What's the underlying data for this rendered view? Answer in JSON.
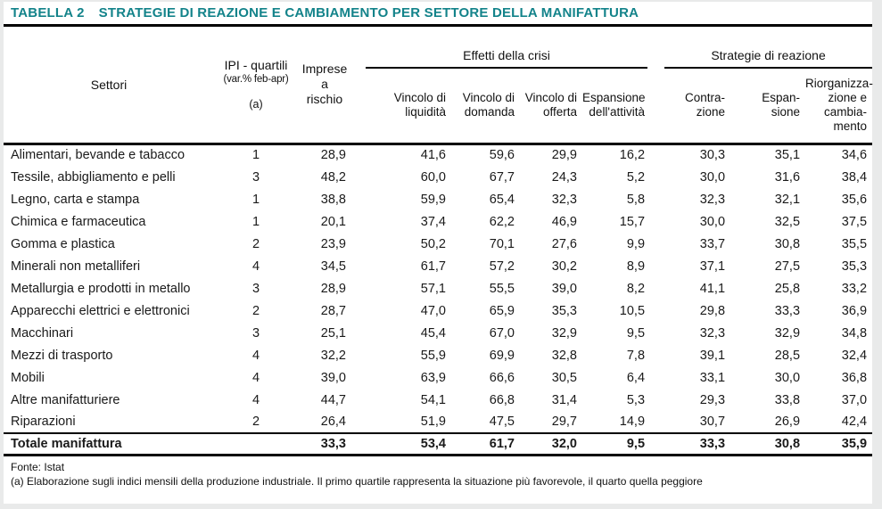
{
  "colors": {
    "title_teal": "#13838a",
    "rule_black": "#000000",
    "frame_gray": "#e9eaea",
    "paper_white": "#ffffff"
  },
  "title": {
    "tag": "TABELLA 2",
    "text": "STRATEGIE DI REAZIONE E CAMBIAMENTO PER SETTORE DELLA MANIFATTURA"
  },
  "header": {
    "settori": "Settori",
    "ipi_line1": "IPI - quartili",
    "ipi_line2": "(var.% feb-apr)",
    "ipi_note": "(a)",
    "imprese_line1": "Imprese a",
    "imprese_line2": "rischio",
    "group_effetti": "Effetti della crisi",
    "group_strategie": "Strategie di reazione",
    "sub_headers": [
      {
        "l1": "Vincolo di",
        "l2": "liquidità"
      },
      {
        "l1": "Vincolo di",
        "l2": "domanda"
      },
      {
        "l1": "Vincolo di",
        "l2": "offerta"
      },
      {
        "l1": "Espansione",
        "l2": "dell'attività"
      },
      {
        "l1": "Contra-",
        "l2": "zione"
      },
      {
        "l1": "Espan-",
        "l2": "sione"
      },
      {
        "l1": "Riorganizza-",
        "l2": "zione e",
        "l3": "cambia-",
        "l4": "mento"
      }
    ]
  },
  "chart_data": {
    "type": "table",
    "title": "TABELLA 2 — STRATEGIE DI REAZIONE E CAMBIAMENTO PER SETTORE DELLA MANIFATTURA",
    "column_groups": [
      {
        "label": "Effetti della crisi",
        "columns": [
          "Vincolo di liquidità",
          "Vincolo di domanda",
          "Vincolo di offerta",
          "Espansione dell'attività"
        ]
      },
      {
        "label": "Strategie di reazione",
        "columns": [
          "Contrazione",
          "Espansione",
          "Riorganizzazione e cambiamento"
        ]
      }
    ],
    "columns": [
      "Settori",
      "IPI - quartili (var.% feb-apr) (a)",
      "Imprese a rischio",
      "Vincolo di liquidità",
      "Vincolo di domanda",
      "Vincolo di offerta",
      "Espansione dell'attività",
      "Contrazione",
      "Espansione",
      "Riorganizzazione e cambiamento"
    ],
    "rows": [
      {
        "settore": "Alimentari, bevande e tabacco",
        "ipi_quartile": "1",
        "imprese_a_rischio": "28,9",
        "vincolo_liquidita": "41,6",
        "vincolo_domanda": "59,6",
        "vincolo_offerta": "29,9",
        "espansione_attivita": "16,2",
        "contrazione": "30,3",
        "espansione": "35,1",
        "riorganizzazione": "34,6"
      },
      {
        "settore": "Tessile, abbigliamento e pelli",
        "ipi_quartile": "3",
        "imprese_a_rischio": "48,2",
        "vincolo_liquidita": "60,0",
        "vincolo_domanda": "67,7",
        "vincolo_offerta": "24,3",
        "espansione_attivita": "5,2",
        "contrazione": "30,0",
        "espansione": "31,6",
        "riorganizzazione": "38,4"
      },
      {
        "settore": "Legno, carta e stampa",
        "ipi_quartile": "1",
        "imprese_a_rischio": "38,8",
        "vincolo_liquidita": "59,9",
        "vincolo_domanda": "65,4",
        "vincolo_offerta": "32,3",
        "espansione_attivita": "5,8",
        "contrazione": "32,3",
        "espansione": "32,1",
        "riorganizzazione": "35,6"
      },
      {
        "settore": "Chimica e farmaceutica",
        "ipi_quartile": "1",
        "imprese_a_rischio": "20,1",
        "vincolo_liquidita": "37,4",
        "vincolo_domanda": "62,2",
        "vincolo_offerta": "46,9",
        "espansione_attivita": "15,7",
        "contrazione": "30,0",
        "espansione": "32,5",
        "riorganizzazione": "37,5"
      },
      {
        "settore": "Gomma e plastica",
        "ipi_quartile": "2",
        "imprese_a_rischio": "23,9",
        "vincolo_liquidita": "50,2",
        "vincolo_domanda": "70,1",
        "vincolo_offerta": "27,6",
        "espansione_attivita": "9,9",
        "contrazione": "33,7",
        "espansione": "30,8",
        "riorganizzazione": "35,5"
      },
      {
        "settore": "Minerali non metalliferi",
        "ipi_quartile": "4",
        "imprese_a_rischio": "34,5",
        "vincolo_liquidita": "61,7",
        "vincolo_domanda": "57,2",
        "vincolo_offerta": "30,2",
        "espansione_attivita": "8,9",
        "contrazione": "37,1",
        "espansione": "27,5",
        "riorganizzazione": "35,3"
      },
      {
        "settore": "Metallurgia e prodotti in metallo",
        "ipi_quartile": "3",
        "imprese_a_rischio": "28,9",
        "vincolo_liquidita": "57,1",
        "vincolo_domanda": "55,5",
        "vincolo_offerta": "39,0",
        "espansione_attivita": "8,2",
        "contrazione": "41,1",
        "espansione": "25,8",
        "riorganizzazione": "33,2"
      },
      {
        "settore": "Apparecchi elettrici e elettronici",
        "ipi_quartile": "2",
        "imprese_a_rischio": "28,7",
        "vincolo_liquidita": "47,0",
        "vincolo_domanda": "65,9",
        "vincolo_offerta": "35,3",
        "espansione_attivita": "10,5",
        "contrazione": "29,8",
        "espansione": "33,3",
        "riorganizzazione": "36,9"
      },
      {
        "settore": "Macchinari",
        "ipi_quartile": "3",
        "imprese_a_rischio": "25,1",
        "vincolo_liquidita": "45,4",
        "vincolo_domanda": "67,0",
        "vincolo_offerta": "32,9",
        "espansione_attivita": "9,5",
        "contrazione": "32,3",
        "espansione": "32,9",
        "riorganizzazione": "34,8"
      },
      {
        "settore": "Mezzi di trasporto",
        "ipi_quartile": "4",
        "imprese_a_rischio": "32,2",
        "vincolo_liquidita": "55,9",
        "vincolo_domanda": "69,9",
        "vincolo_offerta": "32,8",
        "espansione_attivita": "7,8",
        "contrazione": "39,1",
        "espansione": "28,5",
        "riorganizzazione": "32,4"
      },
      {
        "settore": "Mobili",
        "ipi_quartile": "4",
        "imprese_a_rischio": "39,0",
        "vincolo_liquidita": "63,9",
        "vincolo_domanda": "66,6",
        "vincolo_offerta": "30,5",
        "espansione_attivita": "6,4",
        "contrazione": "33,1",
        "espansione": "30,0",
        "riorganizzazione": "36,8"
      },
      {
        "settore": "Altre manifatturiere",
        "ipi_quartile": "4",
        "imprese_a_rischio": "44,7",
        "vincolo_liquidita": "54,1",
        "vincolo_domanda": "66,8",
        "vincolo_offerta": "31,4",
        "espansione_attivita": "5,3",
        "contrazione": "29,3",
        "espansione": "33,8",
        "riorganizzazione": "37,0"
      },
      {
        "settore": "Riparazioni",
        "ipi_quartile": "2",
        "imprese_a_rischio": "26,4",
        "vincolo_liquidita": "51,9",
        "vincolo_domanda": "47,5",
        "vincolo_offerta": "29,7",
        "espansione_attivita": "14,9",
        "contrazione": "30,7",
        "espansione": "26,9",
        "riorganizzazione": "42,4"
      }
    ],
    "total": {
      "settore": "Totale manifattura",
      "ipi_quartile": "",
      "imprese_a_rischio": "33,3",
      "vincolo_liquidita": "53,4",
      "vincolo_domanda": "61,7",
      "vincolo_offerta": "32,0",
      "espansione_attivita": "9,5",
      "contrazione": "33,3",
      "espansione": "30,8",
      "riorganizzazione": "35,9"
    }
  },
  "footer": {
    "source": "Fonte: Istat",
    "note": "(a)  Elaborazione sugli indici mensili della produzione industriale. Il primo quartile rappresenta la situazione più favorevole, il quarto quella peggiore"
  }
}
